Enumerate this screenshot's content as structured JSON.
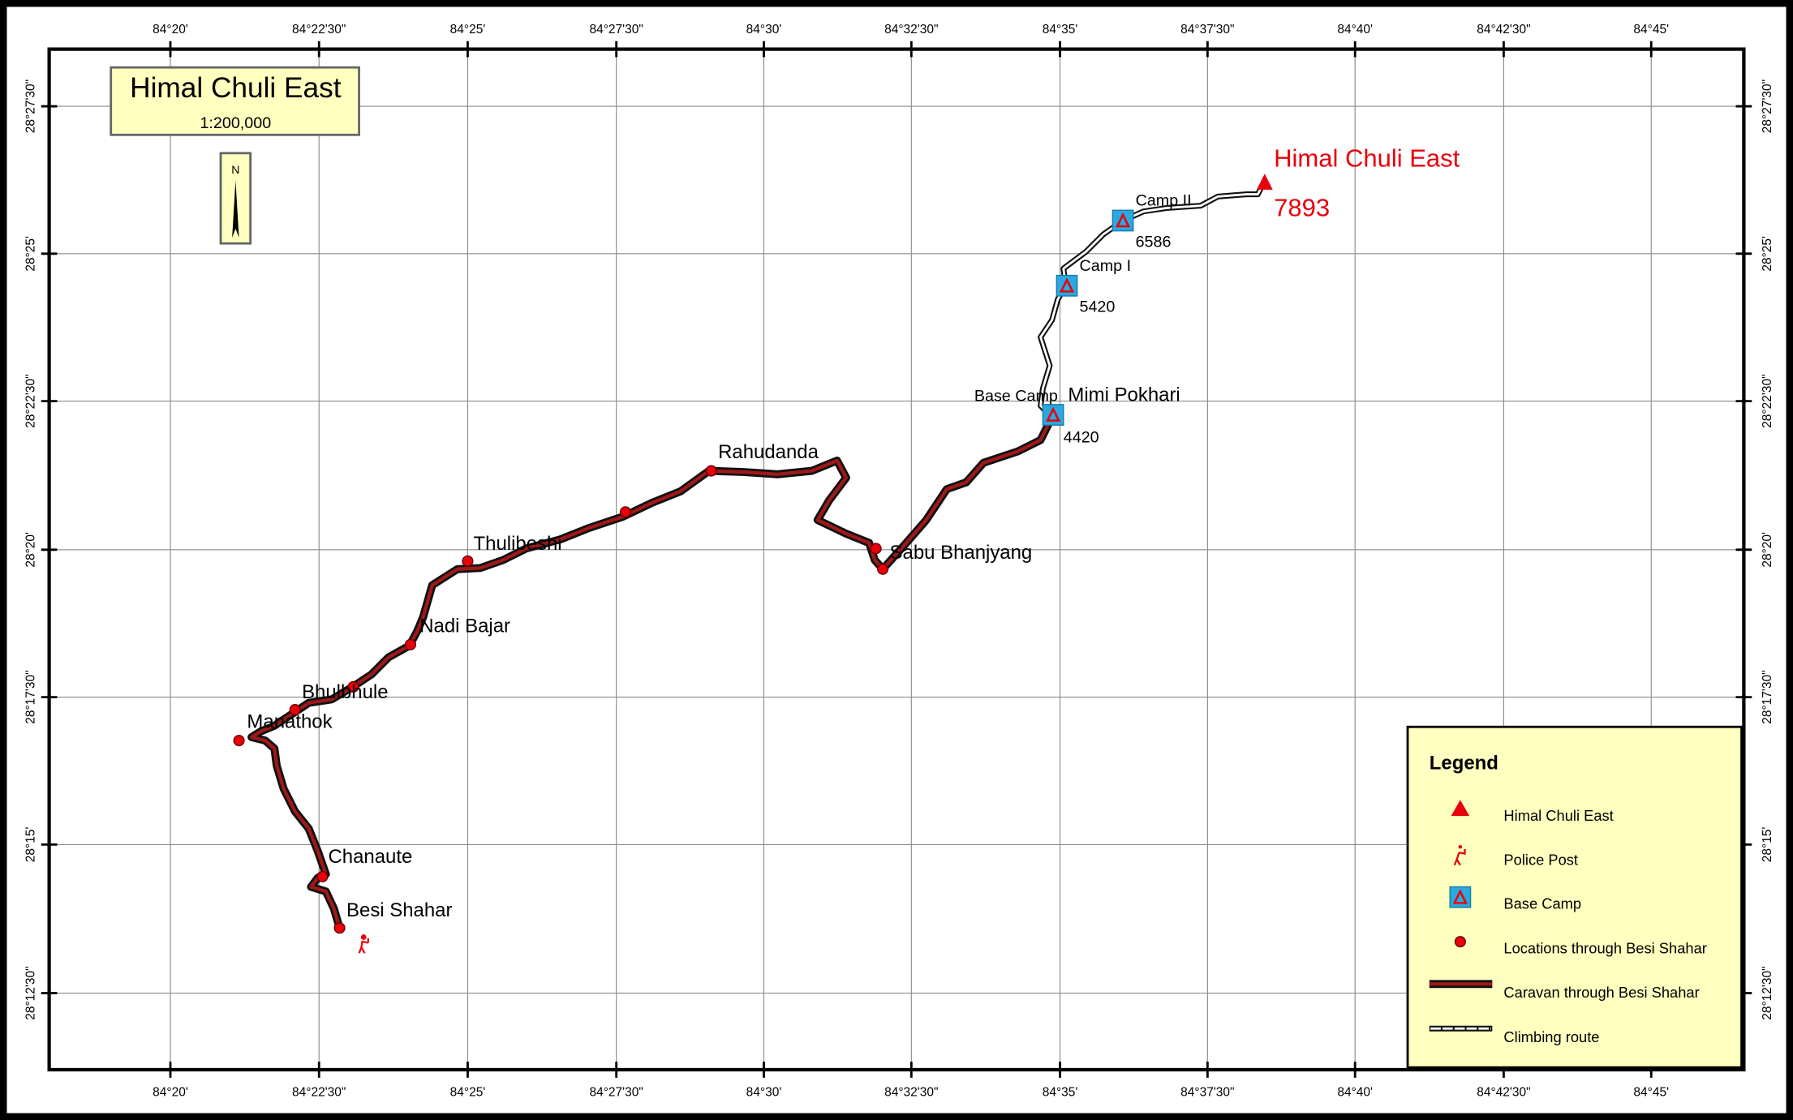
{
  "header": {
    "title": "Himal Chuli East",
    "scale": "1:200,000",
    "north": "N"
  },
  "grid": {
    "longitudes": [
      "84°20'",
      "84°22'30\"",
      "84°25'",
      "84°27'30\"",
      "84°30'",
      "84°32'30\"",
      "84°35'",
      "84°37'30\"",
      "84°40'",
      "84°42'30\"",
      "84°45'"
    ],
    "latitudes": [
      "28°27'30\"",
      "28°25'",
      "28°22'30\"",
      "28°20'",
      "28°17'30\"",
      "28°15'",
      "28°12'30\""
    ]
  },
  "places": [
    "Besi Shahar",
    "Chanaute",
    "Manathok",
    "Bhulbhule",
    "Nadi Bajar",
    "Thulibeshi",
    "Rahudanda",
    "Sabu Bhanjyang",
    "Mimi Pokhari"
  ],
  "camps": [
    {
      "label": "Base Camp",
      "elevation": 4420
    },
    {
      "label": "Camp I",
      "elevation": 5420
    },
    {
      "label": "Camp II",
      "elevation": 6586
    }
  ],
  "peak": {
    "label": "Himal Chuli East",
    "elevation": 7893
  },
  "legend": {
    "title": "Legend",
    "items": [
      "Himal Chuli East",
      "Police Post",
      "Base Camp",
      "Locations through Besi Shahar",
      "Caravan  through Besi Shahar",
      "Climbing route"
    ]
  }
}
